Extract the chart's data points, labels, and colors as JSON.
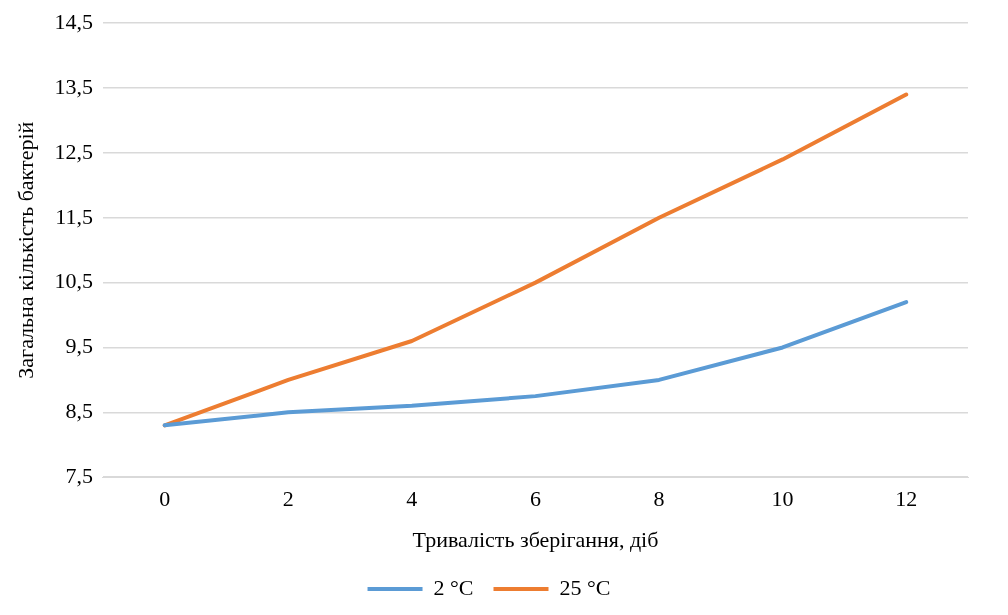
{
  "chart_data": {
    "type": "line",
    "xlabel": "Тривалість зберігання, діб",
    "ylabel": "Загальна кількість бактерій",
    "categories": [
      "0",
      "2",
      "4",
      "6",
      "8",
      "10",
      "12"
    ],
    "series": [
      {
        "name": "2 °C",
        "color": "#5b9bd5",
        "values": [
          8.3,
          8.5,
          8.6,
          8.75,
          9.0,
          9.5,
          10.2
        ]
      },
      {
        "name": "25 °C",
        "color": "#ed7d31",
        "values": [
          8.3,
          9.0,
          9.6,
          10.5,
          11.5,
          12.4,
          13.4
        ]
      }
    ],
    "ylim": [
      7.5,
      14.5
    ],
    "yticks": [
      {
        "value": 7.5,
        "label": "7,5"
      },
      {
        "value": 8.5,
        "label": "8,5"
      },
      {
        "value": 9.5,
        "label": "9,5"
      },
      {
        "value": 10.5,
        "label": "10,5"
      },
      {
        "value": 11.5,
        "label": "11,5"
      },
      {
        "value": 12.5,
        "label": "12,5"
      },
      {
        "value": 13.5,
        "label": "13,5"
      },
      {
        "value": 14.5,
        "label": "14,5"
      }
    ],
    "grid": "y",
    "legend": "bottom",
    "marker": "none",
    "line_style": "solid"
  }
}
